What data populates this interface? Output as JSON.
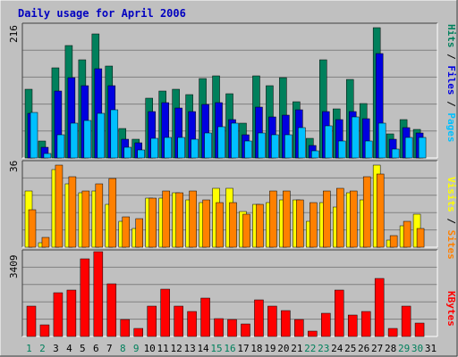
{
  "title": "Daily usage for April 2006",
  "colors": {
    "background": "#c0c0c0",
    "plot_bg": "#c0c0c0",
    "title": "#0000c0",
    "hits": "#00805c",
    "files": "#0000e0",
    "pages": "#00c0ff",
    "visits": "#ffff00",
    "sites": "#ff8000",
    "kbytes": "#ff0000",
    "weekend_label": "#00805c",
    "weekday_label": "#000000"
  },
  "right_labels": {
    "pages": "Pages",
    "files": "Files",
    "hits": "Hits",
    "sep": " / ",
    "sites": "Sites",
    "visits": "Visits",
    "kbytes": "KBytes"
  },
  "chart_data": [
    {
      "type": "bar",
      "name": "hits-files-pages",
      "axis_max_label": "216",
      "ylim": [
        0,
        216
      ],
      "categories": [
        "1",
        "2",
        "3",
        "4",
        "5",
        "6",
        "7",
        "8",
        "9",
        "10",
        "11",
        "12",
        "13",
        "14",
        "15",
        "16",
        "17",
        "18",
        "19",
        "20",
        "21",
        "22",
        "23",
        "24",
        "25",
        "26",
        "27",
        "28",
        "29",
        "30",
        "31"
      ],
      "series": [
        {
          "name": "Hits",
          "values": [
            111,
            28,
            147,
            182,
            159,
            202,
            150,
            48,
            30,
            97,
            108,
            112,
            103,
            129,
            134,
            104,
            57,
            133,
            118,
            130,
            91,
            32,
            159,
            80,
            127,
            88,
            211,
            39,
            63,
            47,
            0
          ]
        },
        {
          "name": "Files",
          "values": [
            73,
            18,
            108,
            131,
            118,
            145,
            117,
            30,
            25,
            76,
            90,
            81,
            75,
            87,
            90,
            63,
            38,
            82,
            66,
            70,
            78,
            20,
            75,
            62,
            75,
            64,
            170,
            30,
            50,
            40,
            0
          ]
        },
        {
          "name": "Pages",
          "values": [
            74,
            7,
            38,
            56,
            61,
            72,
            78,
            17,
            13,
            32,
            33,
            34,
            31,
            41,
            51,
            56,
            28,
            40,
            37,
            38,
            49,
            12,
            52,
            27,
            66,
            28,
            57,
            15,
            34,
            34,
            0
          ]
        }
      ]
    },
    {
      "type": "bar",
      "name": "visits-sites",
      "axis_max_label": "36",
      "ylim": [
        0,
        36
      ],
      "categories": [
        "1",
        "2",
        "3",
        "4",
        "5",
        "6",
        "7",
        "8",
        "9",
        "10",
        "11",
        "12",
        "13",
        "14",
        "15",
        "16",
        "17",
        "18",
        "19",
        "20",
        "21",
        "22",
        "23",
        "24",
        "25",
        "26",
        "27",
        "28",
        "29",
        "30",
        "31"
      ],
      "series": [
        {
          "name": "Visits",
          "values": [
            24,
            2,
            33,
            27,
            23,
            24,
            18,
            11,
            8,
            21,
            21,
            23,
            20,
            19,
            25,
            25,
            15,
            18,
            19,
            20,
            20,
            11,
            19,
            17,
            23,
            20,
            35,
            3,
            9,
            14,
            0
          ]
        },
        {
          "name": "Sites",
          "values": [
            16,
            4,
            35,
            30,
            24,
            27,
            29,
            13,
            12,
            21,
            24,
            23,
            24,
            20,
            19,
            19,
            14,
            18,
            24,
            24,
            20,
            19,
            24,
            25,
            24,
            30,
            31,
            5,
            11,
            8,
            0
          ]
        }
      ]
    },
    {
      "type": "bar",
      "name": "kbytes",
      "axis_max_label": "3409",
      "ylim": [
        0,
        3409
      ],
      "categories": [
        "1",
        "2",
        "3",
        "4",
        "5",
        "6",
        "7",
        "8",
        "9",
        "10",
        "11",
        "12",
        "13",
        "14",
        "15",
        "16",
        "17",
        "18",
        "19",
        "20",
        "21",
        "22",
        "23",
        "24",
        "25",
        "26",
        "27",
        "28",
        "29",
        "30",
        "31"
      ],
      "series": [
        {
          "name": "KBytes",
          "values": [
            1230,
            450,
            1750,
            1850,
            3135,
            3409,
            2100,
            677,
            340,
            1231,
            1889,
            1220,
            1010,
            1530,
            700,
            680,
            510,
            1460,
            1229,
            1024,
            677,
            228,
            941,
            1860,
            874,
            1010,
            2330,
            340,
            1230,
            551,
            0
          ]
        }
      ]
    }
  ],
  "day_labels": [
    {
      "d": "1",
      "weekend": true
    },
    {
      "d": "2",
      "weekend": true
    },
    {
      "d": "3",
      "weekend": false
    },
    {
      "d": "4",
      "weekend": false
    },
    {
      "d": "5",
      "weekend": false
    },
    {
      "d": "6",
      "weekend": false
    },
    {
      "d": "7",
      "weekend": false
    },
    {
      "d": "8",
      "weekend": true
    },
    {
      "d": "9",
      "weekend": true
    },
    {
      "d": "10",
      "weekend": false
    },
    {
      "d": "11",
      "weekend": false
    },
    {
      "d": "12",
      "weekend": false
    },
    {
      "d": "13",
      "weekend": false
    },
    {
      "d": "14",
      "weekend": false
    },
    {
      "d": "15",
      "weekend": true
    },
    {
      "d": "16",
      "weekend": true
    },
    {
      "d": "17",
      "weekend": false
    },
    {
      "d": "18",
      "weekend": false
    },
    {
      "d": "19",
      "weekend": false
    },
    {
      "d": "20",
      "weekend": false
    },
    {
      "d": "21",
      "weekend": false
    },
    {
      "d": "22",
      "weekend": true
    },
    {
      "d": "23",
      "weekend": true
    },
    {
      "d": "24",
      "weekend": false
    },
    {
      "d": "25",
      "weekend": false
    },
    {
      "d": "26",
      "weekend": false
    },
    {
      "d": "27",
      "weekend": false
    },
    {
      "d": "28",
      "weekend": false
    },
    {
      "d": "29",
      "weekend": true
    },
    {
      "d": "30",
      "weekend": true
    },
    {
      "d": "31",
      "weekend": false
    }
  ]
}
